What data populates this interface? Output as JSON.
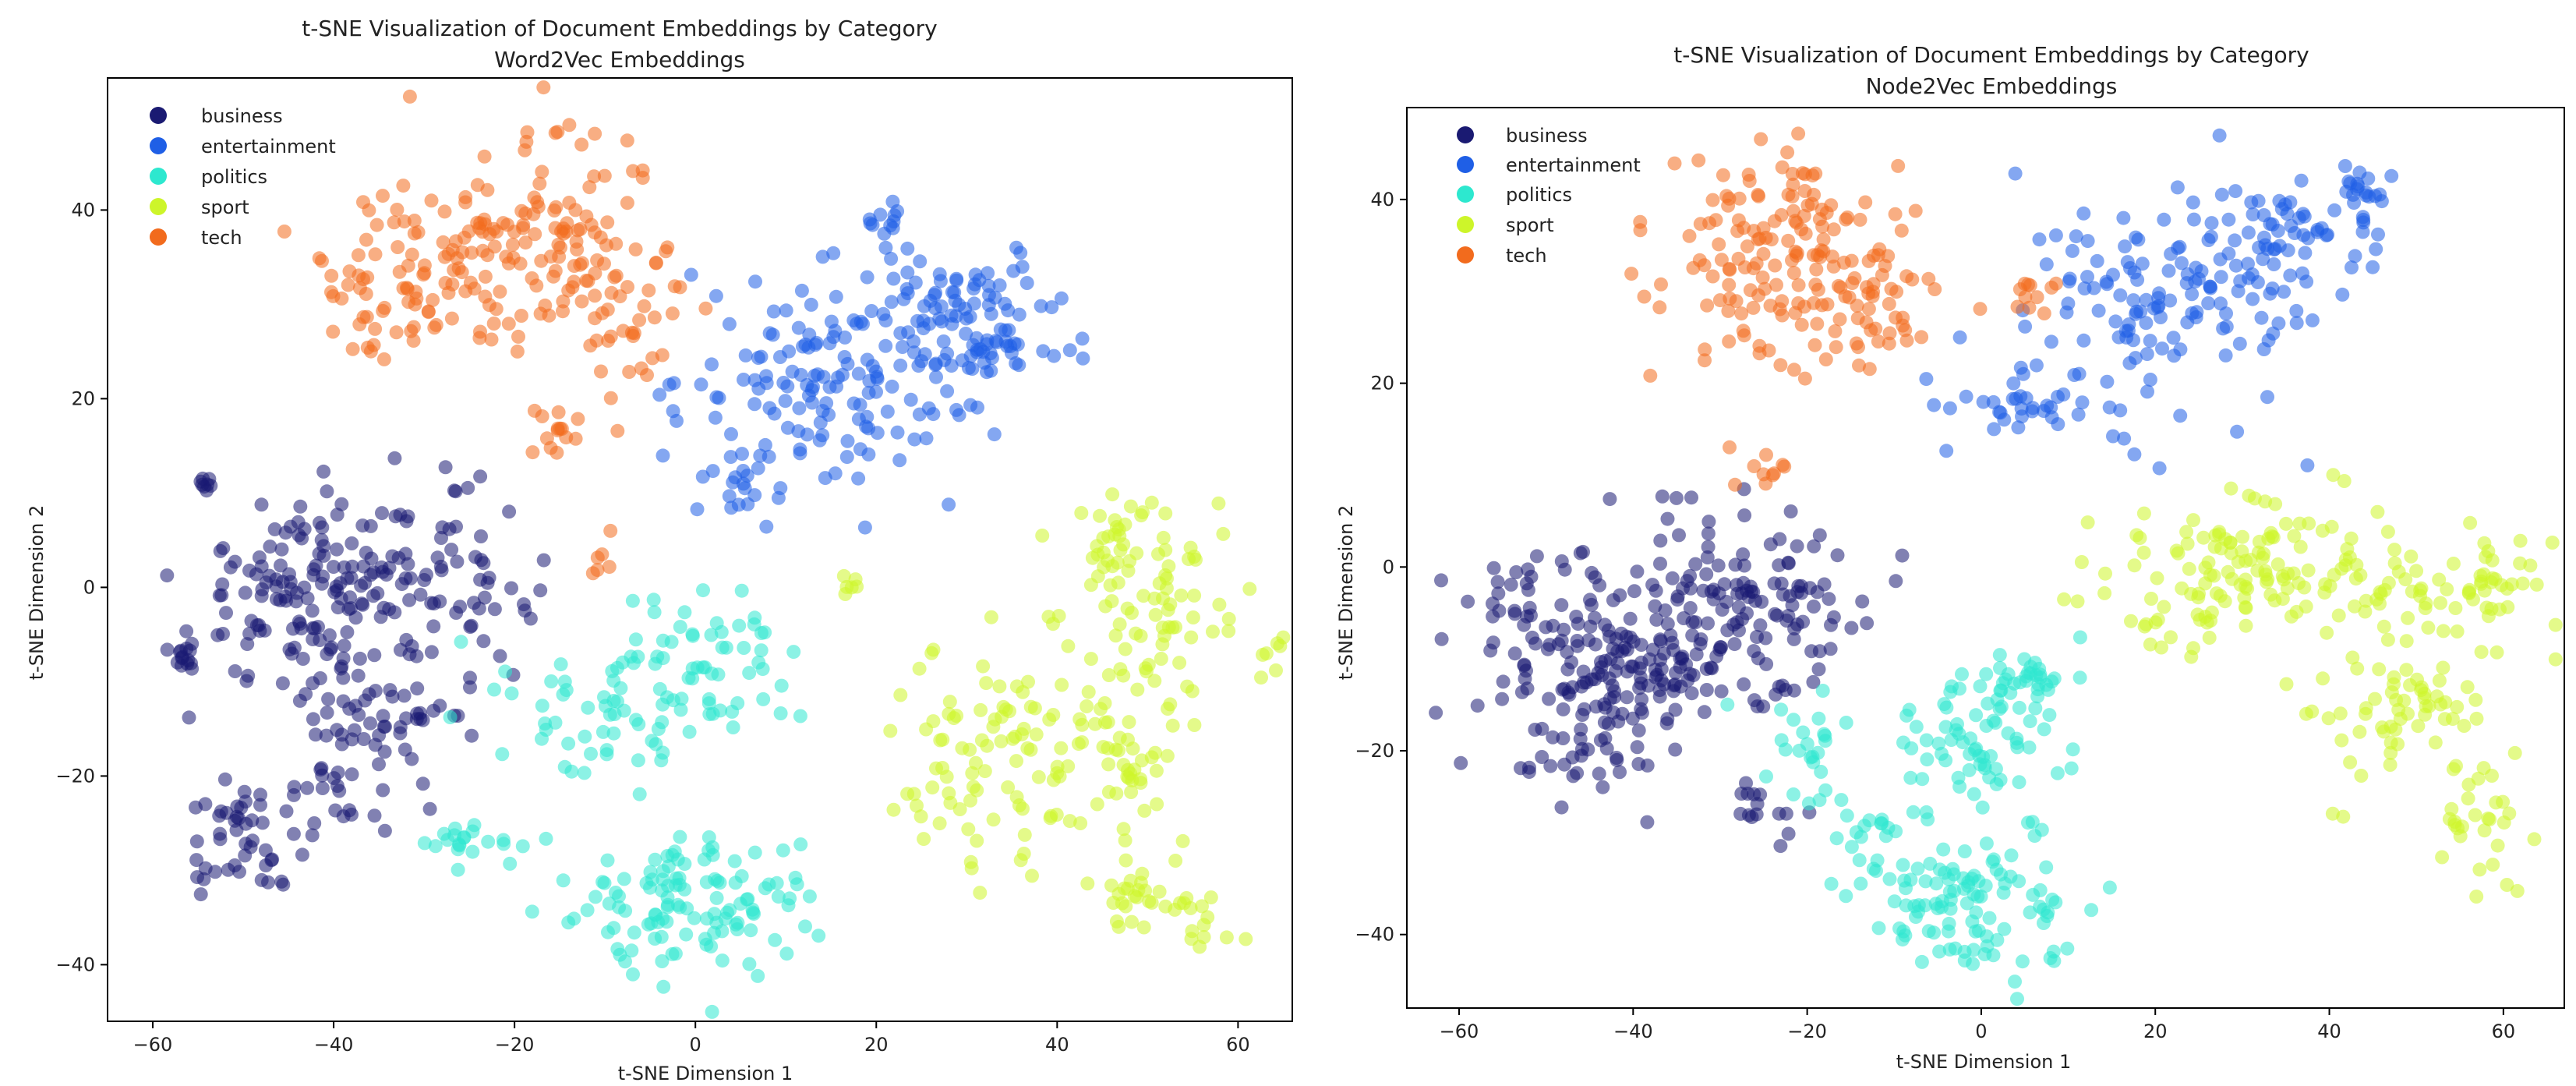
{
  "chart_data": [
    {
      "type": "scatter",
      "title": "t-SNE Visualization of Document Embeddings by Category",
      "subtitle": "Word2Vec Embeddings",
      "xlabel": "t-SNE Dimension 1",
      "ylabel": "t-SNE Dimension 2",
      "xlim": [
        -65,
        66
      ],
      "ylim": [
        -46,
        54
      ],
      "xticks": [
        -60,
        -40,
        -20,
        0,
        20,
        40,
        60
      ],
      "yticks": [
        -40,
        -20,
        0,
        20,
        40
      ],
      "xtick_labels": [
        "−60",
        "−40",
        "−20",
        "0",
        "20",
        "40",
        "60"
      ],
      "ytick_labels": [
        "−40",
        "−20",
        "0",
        "20",
        "40"
      ],
      "grid": false,
      "legend_position": "top-left",
      "series": [
        {
          "name": "business",
          "color": "#1a1a72",
          "clusters": [
            {
              "cx": -44,
              "cy": 0,
              "sx": 6,
              "sy": 5,
              "n": 110
            },
            {
              "cx": -30,
              "cy": 0,
              "sx": 6,
              "sy": 5,
              "n": 90
            },
            {
              "cx": -36,
              "cy": -14,
              "sx": 5,
              "sy": 6,
              "n": 60
            },
            {
              "cx": -50,
              "cy": -27,
              "sx": 3,
              "sy": 3,
              "n": 45
            },
            {
              "cx": -56,
              "cy": -7,
              "sx": 1.5,
              "sy": 0.8,
              "n": 14
            },
            {
              "cx": -54,
              "cy": 11,
              "sx": 1,
              "sy": 0.5,
              "n": 8
            },
            {
              "cx": -40,
              "cy": -20,
              "sx": 3,
              "sy": 3,
              "n": 20
            }
          ]
        },
        {
          "name": "entertainment",
          "color": "#1f5fe6",
          "clusters": [
            {
              "cx": 15,
              "cy": 22,
              "sx": 8,
              "sy": 6,
              "n": 150
            },
            {
              "cx": 30,
              "cy": 28,
              "sx": 6,
              "sy": 4,
              "n": 100
            },
            {
              "cx": 21,
              "cy": 39,
              "sx": 1.5,
              "sy": 1,
              "n": 12
            },
            {
              "cx": 6,
              "cy": 10,
              "sx": 2,
              "sy": 2,
              "n": 15
            }
          ]
        },
        {
          "name": "politics",
          "color": "#2de8cf",
          "clusters": [
            {
              "cx": 0,
              "cy": -33,
              "sx": 7,
              "sy": 4,
              "n": 120
            },
            {
              "cx": -8,
              "cy": -12,
              "sx": 6,
              "sy": 4,
              "n": 70
            },
            {
              "cx": 3,
              "cy": -8,
              "sx": 4,
              "sy": 4,
              "n": 40
            },
            {
              "cx": -24,
              "cy": -27,
              "sx": 3,
              "sy": 1.5,
              "n": 20
            }
          ]
        },
        {
          "name": "sport",
          "color": "#cdf52a",
          "clusters": [
            {
              "cx": 33,
              "cy": -18,
              "sx": 5,
              "sy": 6,
              "n": 90
            },
            {
              "cx": 48,
              "cy": -18,
              "sx": 4,
              "sy": 6,
              "n": 60
            },
            {
              "cx": 52,
              "cy": -3,
              "sx": 6,
              "sy": 5,
              "n": 70
            },
            {
              "cx": 47,
              "cy": 5,
              "sx": 3,
              "sy": 3,
              "n": 25
            },
            {
              "cx": 49,
              "cy": -33,
              "sx": 2,
              "sy": 1.5,
              "n": 20
            },
            {
              "cx": 56,
              "cy": -35,
              "sx": 2,
              "sy": 1.5,
              "n": 15
            },
            {
              "cx": 17,
              "cy": 0,
              "sx": 1,
              "sy": 1,
              "n": 6
            }
          ]
        },
        {
          "name": "tech",
          "color": "#f26b1d",
          "clusters": [
            {
              "cx": -20,
              "cy": 38,
              "sx": 8,
              "sy": 6,
              "n": 140
            },
            {
              "cx": -32,
              "cy": 31,
              "sx": 5,
              "sy": 4,
              "n": 60
            },
            {
              "cx": -8,
              "cy": 30,
              "sx": 5,
              "sy": 5,
              "n": 40
            },
            {
              "cx": -15,
              "cy": 16,
              "sx": 2,
              "sy": 2,
              "n": 12
            },
            {
              "cx": -10,
              "cy": 3,
              "sx": 1,
              "sy": 1.5,
              "n": 6
            }
          ]
        }
      ]
    },
    {
      "type": "scatter",
      "title": "t-SNE Visualization of Document Embeddings by Category",
      "subtitle": "Node2Vec Embeddings",
      "xlabel": "t-SNE Dimension 1",
      "ylabel": "t-SNE Dimension 2",
      "xlim": [
        -66,
        67
      ],
      "ylim": [
        -48,
        50
      ],
      "xticks": [
        -60,
        -40,
        -20,
        0,
        20,
        40,
        60
      ],
      "yticks": [
        -40,
        -20,
        0,
        20,
        40
      ],
      "xtick_labels": [
        "−60",
        "−40",
        "−20",
        "0",
        "20",
        "40",
        "60"
      ],
      "ytick_labels": [
        "−40",
        "−20",
        "0",
        "20",
        "40"
      ],
      "grid": false,
      "legend_position": "top-left",
      "series": [
        {
          "name": "business",
          "color": "#1a1a72",
          "clusters": [
            {
              "cx": -45,
              "cy": -10,
              "sx": 7,
              "sy": 7,
              "n": 200
            },
            {
              "cx": -30,
              "cy": -5,
              "sx": 6,
              "sy": 6,
              "n": 100
            },
            {
              "cx": -20,
              "cy": -5,
              "sx": 4,
              "sy": 4,
              "n": 40
            },
            {
              "cx": -25,
              "cy": -27,
              "sx": 3,
              "sy": 2,
              "n": 15
            }
          ]
        },
        {
          "name": "entertainment",
          "color": "#1f5fe6",
          "clusters": [
            {
              "cx": 20,
              "cy": 28,
              "sx": 8,
              "sy": 6,
              "n": 130
            },
            {
              "cx": 35,
              "cy": 36,
              "sx": 5,
              "sy": 3,
              "n": 60
            },
            {
              "cx": 44,
              "cy": 41,
              "sx": 1.5,
              "sy": 1.5,
              "n": 20
            },
            {
              "cx": 5,
              "cy": 17,
              "sx": 4,
              "sy": 2,
              "n": 30
            }
          ]
        },
        {
          "name": "politics",
          "color": "#2de8cf",
          "clusters": [
            {
              "cx": -2,
              "cy": -36,
              "sx": 6,
              "sy": 4,
              "n": 110
            },
            {
              "cx": 0,
              "cy": -20,
              "sx": 5,
              "sy": 4,
              "n": 70
            },
            {
              "cx": 3,
              "cy": -12,
              "sx": 3,
              "sy": 2,
              "n": 30
            },
            {
              "cx": -20,
              "cy": -20,
              "sx": 3,
              "sy": 4,
              "n": 25
            },
            {
              "cx": -14,
              "cy": -30,
              "sx": 3,
              "sy": 2,
              "n": 15
            }
          ]
        },
        {
          "name": "sport",
          "color": "#cdf52a",
          "clusters": [
            {
              "cx": 30,
              "cy": 0,
              "sx": 9,
              "sy": 4,
              "n": 130
            },
            {
              "cx": 55,
              "cy": -3,
              "sx": 6,
              "sy": 3,
              "n": 70
            },
            {
              "cx": 47,
              "cy": -16,
              "sx": 5,
              "sy": 4,
              "n": 60
            },
            {
              "cx": 57,
              "cy": -28,
              "sx": 3,
              "sy": 3,
              "n": 30
            }
          ]
        },
        {
          "name": "tech",
          "color": "#f26b1d",
          "clusters": [
            {
              "cx": -23,
              "cy": 34,
              "sx": 7,
              "sy": 6,
              "n": 150
            },
            {
              "cx": -12,
              "cy": 27,
              "sx": 3,
              "sy": 4,
              "n": 40
            },
            {
              "cx": 5,
              "cy": 28,
              "sx": 1.5,
              "sy": 1.5,
              "n": 12
            },
            {
              "cx": -24,
              "cy": 10,
              "sx": 3,
              "sy": 2,
              "n": 10
            }
          ]
        }
      ]
    }
  ]
}
